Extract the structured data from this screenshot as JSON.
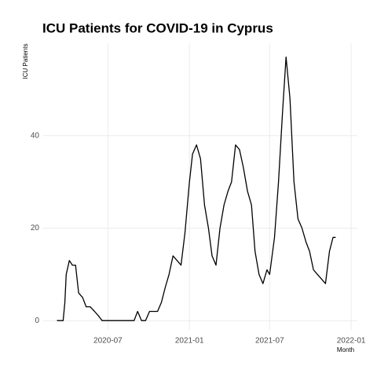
{
  "chart_data": {
    "type": "line",
    "title": "ICU Patients for COVID-19 in Cyprus",
    "y_label": "ICU Patients",
    "x_label": "Month",
    "x": [
      "2020-03-08",
      "2020-03-22",
      "2020-03-26",
      "2020-03-29",
      "2020-04-05",
      "2020-04-12",
      "2020-04-19",
      "2020-04-26",
      "2020-05-05",
      "2020-05-13",
      "2020-05-22",
      "2020-06-01",
      "2020-06-10",
      "2020-06-18",
      "2020-07-01",
      "2020-07-24",
      "2020-08-11",
      "2020-08-29",
      "2020-09-06",
      "2020-09-15",
      "2020-09-24",
      "2020-10-03",
      "2020-10-12",
      "2020-10-21",
      "2020-10-30",
      "2020-11-07",
      "2020-11-16",
      "2020-11-25",
      "2020-12-04",
      "2020-12-13",
      "2020-12-22",
      "2021-01-01",
      "2021-01-08",
      "2021-01-17",
      "2021-01-26",
      "2021-02-04",
      "2021-02-13",
      "2021-02-21",
      "2021-03-02",
      "2021-03-11",
      "2021-03-20",
      "2021-03-29",
      "2021-04-06",
      "2021-04-15",
      "2021-04-24",
      "2021-05-03",
      "2021-05-12",
      "2021-05-21",
      "2021-05-29",
      "2021-06-07",
      "2021-06-16",
      "2021-06-25",
      "2021-07-01",
      "2021-07-12",
      "2021-07-21",
      "2021-07-30",
      "2021-08-07",
      "2021-08-16",
      "2021-08-25",
      "2021-09-03",
      "2021-09-12",
      "2021-09-21",
      "2021-09-29",
      "2021-10-08",
      "2021-10-17",
      "2021-10-26",
      "2021-11-04",
      "2021-11-13",
      "2021-11-21",
      "2021-11-27"
    ],
    "series": [
      {
        "name": "ICU Patients",
        "color": "#000000",
        "values": [
          0,
          0,
          4,
          10,
          13,
          12,
          12,
          6,
          5,
          3,
          3,
          2,
          1,
          0,
          0,
          0,
          0,
          0,
          2,
          0,
          0,
          2,
          2,
          2,
          4,
          7,
          10,
          14,
          13,
          12,
          19,
          30,
          36,
          38,
          35,
          25,
          20,
          14,
          12,
          20,
          25,
          28,
          30,
          38,
          37,
          33,
          28,
          25,
          15,
          10,
          8,
          11,
          10,
          18,
          30,
          45,
          57,
          48,
          30,
          22,
          20,
          17,
          15,
          11,
          10,
          9,
          8,
          15,
          18,
          18
        ]
      }
    ],
    "xlim": [
      "2020-02-06",
      "2022-01-15"
    ],
    "xticks": [
      {
        "value": "2020-07-01",
        "label": "2020-07"
      },
      {
        "value": "2021-01-01",
        "label": "2021-01"
      },
      {
        "value": "2021-07-01",
        "label": "2021-07"
      },
      {
        "value": "2022-01-01",
        "label": "2022-01"
      }
    ],
    "ylim": [
      -2,
      60
    ],
    "yticks": [
      0,
      20,
      40
    ],
    "grid": true
  }
}
